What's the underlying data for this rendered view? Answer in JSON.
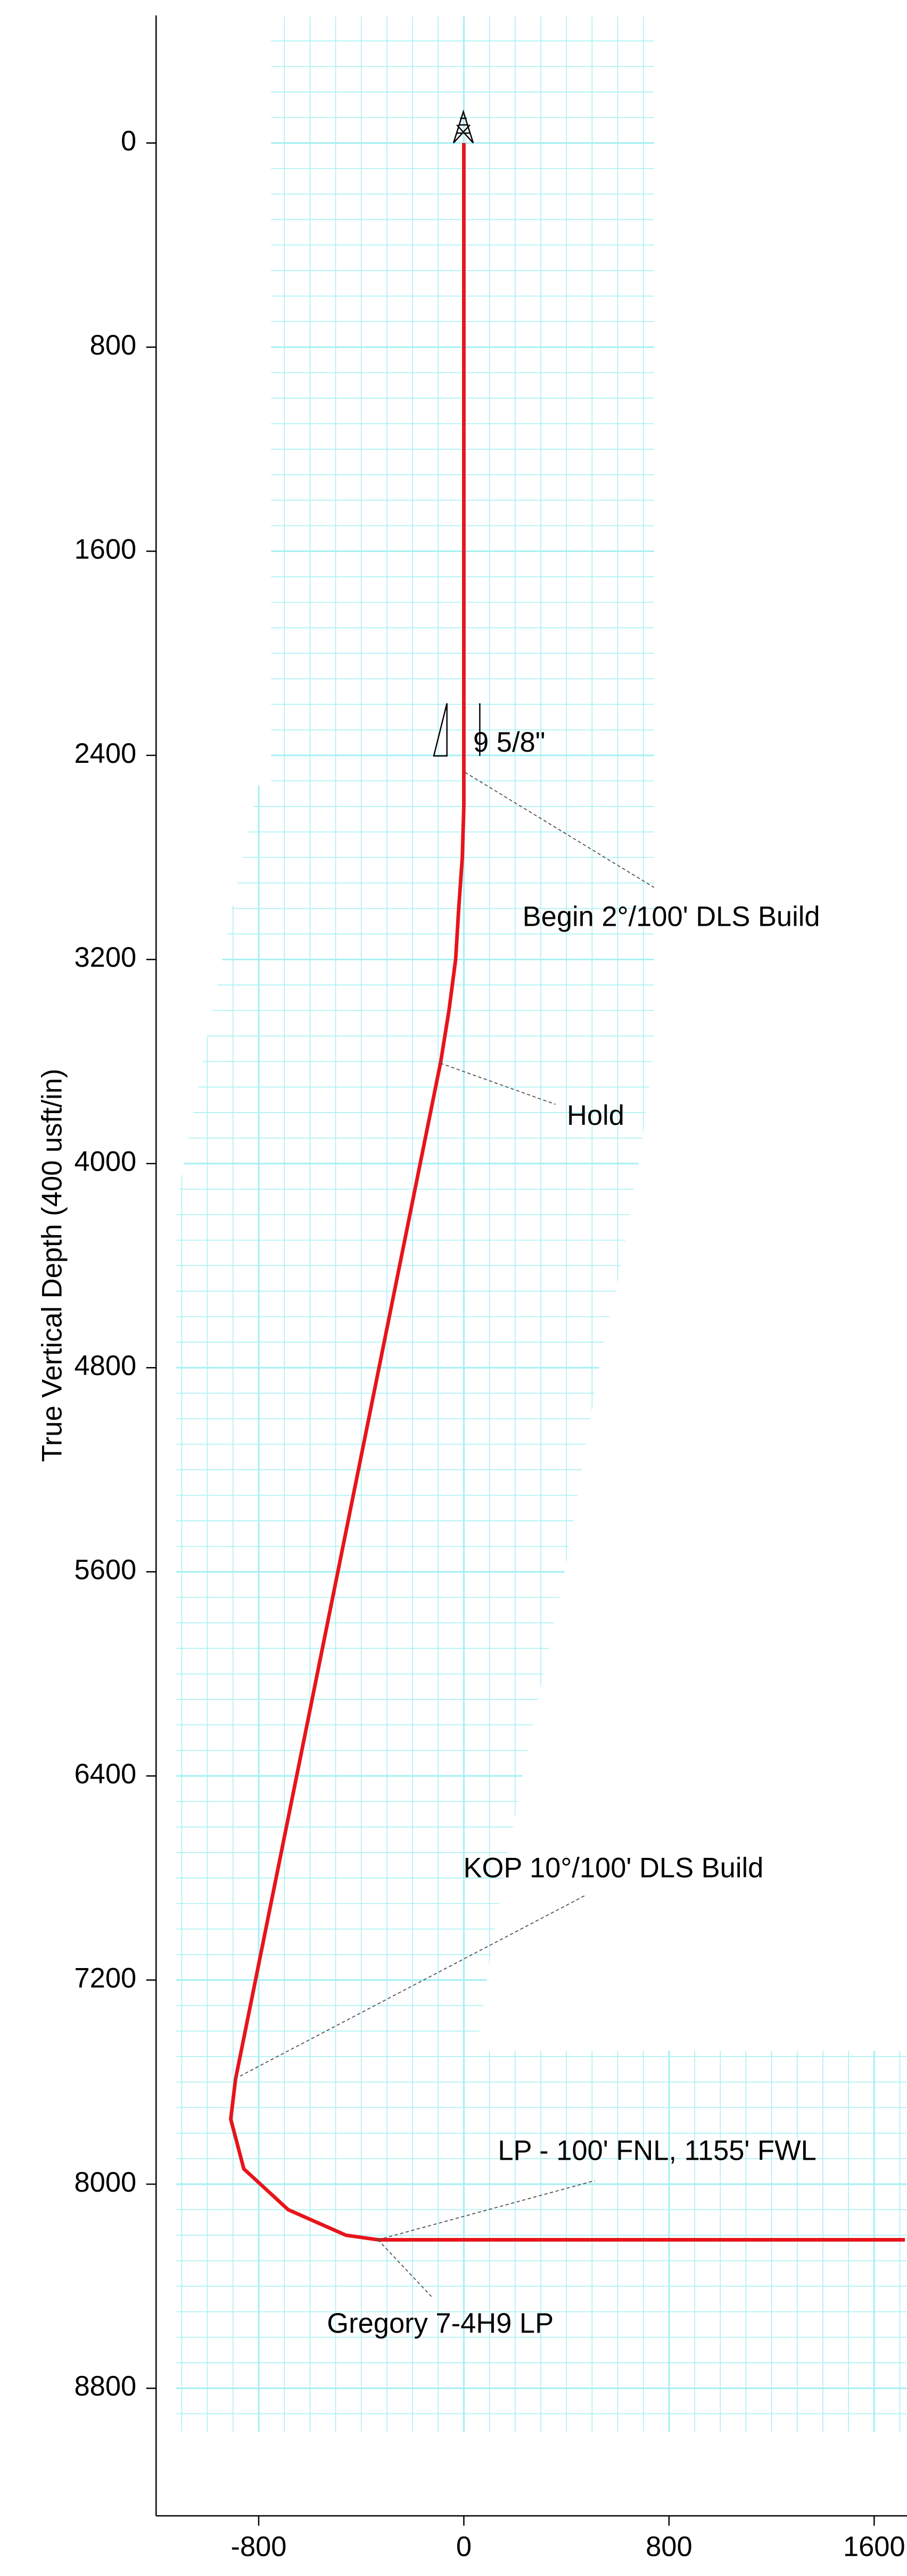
{
  "chart_data": {
    "type": "line",
    "y_label": "True Vertical Depth (400 usft/in)",
    "xlim": [
      -1200,
      1728
    ],
    "ylim": [
      -500,
      9300
    ],
    "y_inverted": true,
    "xticks": [
      -800,
      0,
      800,
      1600
    ],
    "yticks": [
      0,
      800,
      1600,
      2400,
      3200,
      4000,
      4800,
      5600,
      6400,
      7200,
      8000,
      8800
    ],
    "grid": true,
    "grid_color": "#a6f0f4",
    "series": [
      {
        "color": "#e8141b",
        "x": [
          0,
          0,
          0,
          -6,
          -20,
          -32,
          -58,
          -90,
          -890,
          -909,
          -858,
          -685,
          -460,
          -333,
          1720
        ],
        "values": [
          0,
          2400,
          2600,
          2800,
          3000,
          3200,
          3400,
          3600,
          7587,
          7745,
          7940,
          8100,
          8200,
          8218,
          8218
        ]
      }
    ],
    "annotations": [
      "9 5/8\"",
      "Begin 2°/100' DLS Build",
      "Hold",
      "KOP 10°/100' DLS Build",
      "LP - 100' FNL, 1155' FWL",
      "Gregory 7-4H9 LP"
    ]
  }
}
